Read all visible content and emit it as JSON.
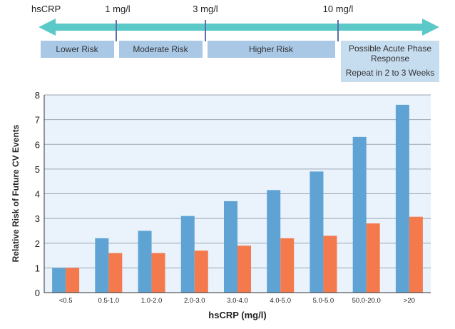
{
  "scale_label": "hsCRP",
  "thresholds": [
    {
      "label": "1 mg/l",
      "value": 1
    },
    {
      "label": "3 mg/l",
      "value": 3
    },
    {
      "label": "10 mg/l",
      "value": 10
    }
  ],
  "risk_bands": [
    {
      "label": "Lower Risk"
    },
    {
      "label": "Moderate Risk"
    },
    {
      "label": "Higher Risk"
    },
    {
      "label_lines": [
        "Possible Acute Phase",
        "Response",
        "Repeat in 2 to 3 Weeks"
      ]
    }
  ],
  "colors": {
    "arrow": "#5cc9c9",
    "tick": "#5b6fa8",
    "band": "#a9c8e6",
    "band_last": "#c6dcef",
    "plot_bg": "#eaf3fb",
    "grid": "#9aa6b2",
    "series_blue": "#5ea3d3",
    "series_orange": "#f47a4d"
  },
  "chart_data": {
    "type": "bar",
    "title": "",
    "xlabel": "hsCRP (mg/l)",
    "ylabel": "Relative Risk of Future CV Events",
    "ylim": [
      0,
      8
    ],
    "yticks": [
      0,
      1,
      2,
      3,
      4,
      5,
      6,
      7,
      8
    ],
    "grid": true,
    "categories": [
      "<0.5",
      "0.5-1.0",
      "1.0-2.0",
      "2.0-3.0",
      "3.0-4.0",
      "4.0-5.0",
      "5.0-5.0",
      "50.0-20.0",
      ">20"
    ],
    "series": [
      {
        "color": "#5ea3d3",
        "values": [
          1.0,
          2.2,
          2.5,
          3.1,
          3.7,
          4.15,
          4.9,
          6.3,
          7.6
        ]
      },
      {
        "color": "#f47a4d",
        "values": [
          1.0,
          1.6,
          1.6,
          1.7,
          1.9,
          2.2,
          2.3,
          2.8,
          3.07
        ]
      }
    ]
  }
}
